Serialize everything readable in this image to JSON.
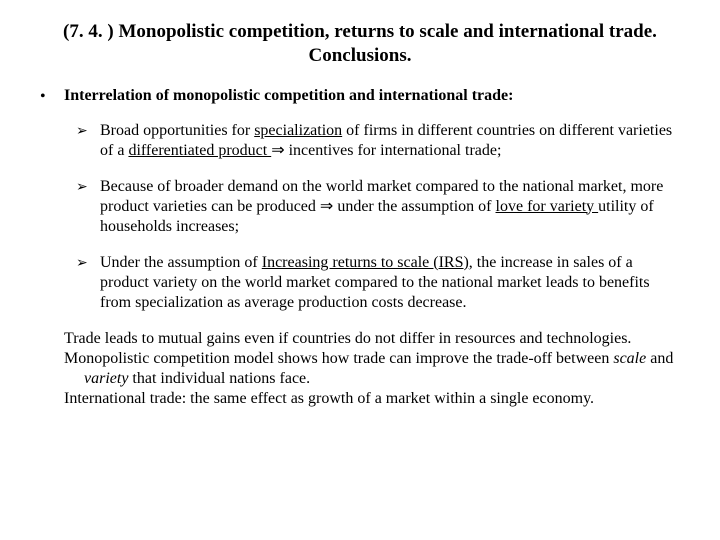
{
  "title": "(7. 4. ) Monopolistic competition, returns to scale and international trade. Conclusions.",
  "main_bullet": "Interrelation of monopolistic competition and international trade:",
  "bullets": {
    "b1_pre": "Broad opportunities for ",
    "b1_u1": "specialization",
    "b1_mid1": " of firms in different countries on different varieties of a ",
    "b1_u2": "differentiated product ",
    "b1_arrow": "⇒",
    "b1_post": " incentives for international trade;",
    "b2_pre": "Because of broader demand on the world market compared to the national market, more product varieties can be produced ",
    "b2_arrow": "⇒",
    "b2_mid": " under the assumption of ",
    "b2_u": "love for variety ",
    "b2_post": "utility of households increases;",
    "b3_pre": "Under the assumption of ",
    "b3_u": "Increasing returns to scale (IRS)",
    "b3_post": ", the increase in sales of a product variety on the world market compared to the national market leads to benefits from specialization as average production costs decrease."
  },
  "closing": {
    "l1": "Trade leads to mutual gains even if countries do not differ in resources and technologies.",
    "l2_pre": "Monopolistic competition model shows how trade can improve the trade-off between ",
    "l2_i1": "scale",
    "l2_mid": " and ",
    "l2_i2": "variety",
    "l2_post": " that individual nations face.",
    "l3": "International trade: the same effect as growth of a market within a single economy."
  }
}
